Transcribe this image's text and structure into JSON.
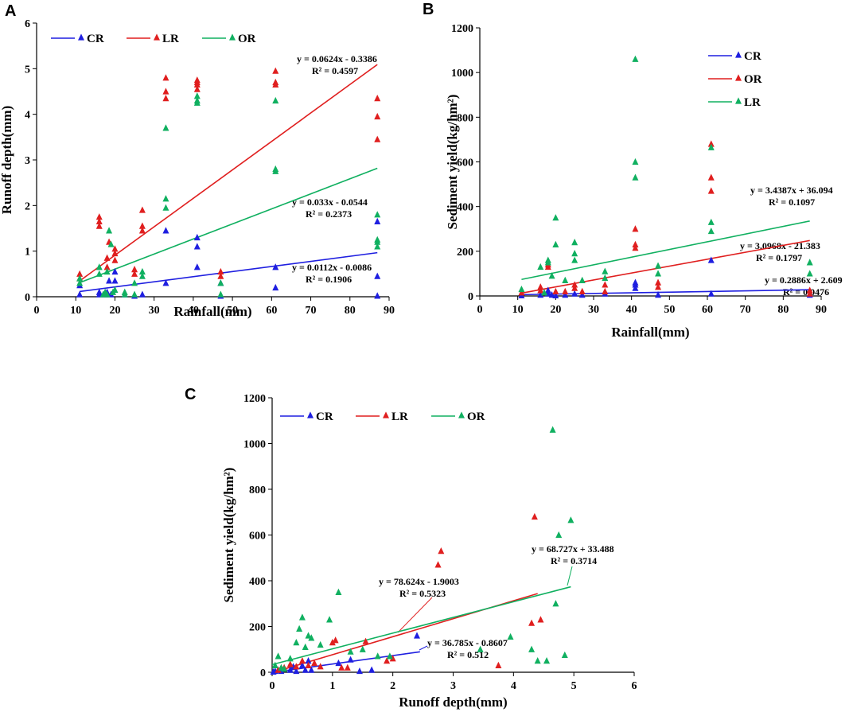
{
  "chart_data": [
    {
      "panel": "A",
      "type": "scatter",
      "xlabel": "Rainfall(mm)",
      "ylabel": "Runoff depth(mm)",
      "xlim": [
        0,
        90
      ],
      "ylim": [
        0,
        6
      ],
      "xticks": [
        0,
        10,
        20,
        30,
        40,
        50,
        60,
        70,
        80,
        90
      ],
      "yticks": [
        0,
        1,
        2,
        3,
        4,
        5,
        6
      ],
      "legend": [
        "CR",
        "LR",
        "OR"
      ],
      "legend_position": "top-left-horizontal",
      "series": [
        {
          "name": "CR",
          "color": "#1f1fe0",
          "x": [
            11,
            11,
            16,
            16,
            17.5,
            18,
            18.5,
            19,
            20,
            20,
            22.5,
            25,
            27,
            33,
            33,
            41,
            41,
            41,
            47,
            47,
            61,
            61,
            87,
            87,
            87
          ],
          "y": [
            0.05,
            0.25,
            0.05,
            0.1,
            0.05,
            0.1,
            0.35,
            0.05,
            0.55,
            0.35,
            0.05,
            0.02,
            0.05,
            0.3,
            1.45,
            1.3,
            1.1,
            0.65,
            0.02,
            0.3,
            0.2,
            0.65,
            0.02,
            0.45,
            1.65
          ],
          "fit": {
            "slope": 0.0112,
            "intercept": -0.0086,
            "x_range": [
              11,
              87
            ]
          }
        },
        {
          "name": "LR",
          "color": "#e01f1f",
          "x": [
            11,
            11,
            16,
            16,
            16,
            18,
            18,
            18.5,
            20,
            20,
            20,
            25,
            25,
            27,
            27,
            27,
            33,
            33,
            33,
            41,
            41,
            41,
            41,
            47,
            47,
            61,
            61,
            61,
            87,
            87,
            87
          ],
          "y": [
            0.4,
            0.5,
            1.55,
            1.65,
            1.75,
            0.65,
            0.85,
            1.2,
            0.8,
            0.95,
            1.05,
            0.5,
            0.6,
            1.45,
            1.55,
            1.9,
            4.35,
            4.5,
            4.8,
            4.55,
            4.65,
            4.7,
            4.75,
            0.45,
            0.55,
            4.65,
            4.7,
            4.95,
            3.45,
            3.95,
            4.35
          ],
          "fit": {
            "slope": 0.0624,
            "intercept": -0.3386,
            "x_range": [
              11,
              87
            ]
          }
        },
        {
          "name": "OR",
          "color": "#10b060",
          "x": [
            11,
            11,
            16,
            16,
            17,
            17.5,
            18,
            18,
            18.5,
            19,
            19.5,
            20,
            22.5,
            22.5,
            25,
            25,
            27,
            27,
            33,
            33,
            33,
            41,
            41,
            41,
            47,
            47,
            61,
            61,
            61,
            87,
            87,
            87,
            87
          ],
          "y": [
            0.3,
            0.4,
            0.5,
            0.65,
            0.05,
            0.1,
            0.05,
            0.55,
            1.45,
            1.15,
            0.1,
            0.15,
            0.05,
            0.1,
            0.05,
            0.3,
            0.55,
            0.45,
            1.95,
            2.15,
            3.7,
            4.25,
            4.3,
            4.4,
            0.05,
            0.3,
            2.75,
            2.8,
            4.3,
            1.1,
            1.2,
            1.25,
            1.8
          ],
          "fit": {
            "slope": 0.033,
            "intercept": -0.0544,
            "x_range": [
              11,
              87
            ]
          }
        }
      ],
      "annotations": [
        {
          "series": "LR",
          "eq": "y = 0.0624x - 0.3386",
          "r2": "R² = 0.4597"
        },
        {
          "series": "OR",
          "eq": "y = 0.033x - 0.0544",
          "r2": "R² = 0.2373"
        },
        {
          "series": "CR",
          "eq": "y = 0.0112x - 0.0086",
          "r2": "R² = 0.1906"
        }
      ]
    },
    {
      "panel": "B",
      "type": "scatter",
      "xlabel": "Rainfall(mm)",
      "ylabel": "Sediment yield(kg/hm²)",
      "xlim": [
        0,
        90
      ],
      "ylim": [
        0,
        1200
      ],
      "xticks": [
        0,
        10,
        20,
        30,
        40,
        50,
        60,
        70,
        80,
        90
      ],
      "yticks": [
        0,
        200,
        400,
        600,
        800,
        1000,
        1200
      ],
      "legend": [
        "CR",
        "OR",
        "LR"
      ],
      "legend_position": "top-right-vertical",
      "series": [
        {
          "name": "CR",
          "color": "#1f1fe0",
          "x": [
            11,
            16,
            18,
            18,
            19,
            20,
            22.5,
            25,
            27,
            33,
            41,
            41,
            41,
            47,
            61,
            61,
            87,
            87
          ],
          "y": [
            2,
            5,
            10,
            25,
            5,
            2,
            5,
            10,
            5,
            10,
            35,
            50,
            60,
            5,
            10,
            160,
            5,
            10
          ],
          "fit": {
            "slope": 0.2886,
            "intercept": 2.609,
            "x_range": [
              11,
              87
            ]
          }
        },
        {
          "name": "OR",
          "color": "#e01f1f",
          "x": [
            11,
            16,
            16,
            18,
            18,
            20,
            22.5,
            25,
            25,
            27,
            33,
            33,
            41,
            41,
            41,
            47,
            47,
            61,
            61,
            61,
            87,
            87
          ],
          "y": [
            15,
            25,
            40,
            130,
            140,
            20,
            20,
            35,
            50,
            20,
            20,
            50,
            215,
            230,
            300,
            40,
            60,
            470,
            530,
            680,
            10,
            25
          ],
          "fit": {
            "slope": 3.0968,
            "intercept": -21.383,
            "x_range": [
              11,
              87
            ]
          }
        },
        {
          "name": "LR",
          "color": "#10b060",
          "x": [
            11,
            16,
            17,
            18,
            18,
            19,
            20,
            20,
            22.5,
            25,
            25,
            25,
            27,
            33,
            33,
            41,
            41,
            41,
            47,
            47,
            61,
            61,
            61,
            87,
            87
          ],
          "y": [
            30,
            130,
            15,
            150,
            160,
            90,
            230,
            350,
            70,
            160,
            190,
            240,
            70,
            80,
            110,
            530,
            600,
            1060,
            100,
            135,
            290,
            330,
            665,
            100,
            150
          ],
          "fit": {
            "slope": 3.4387,
            "intercept": 36.094,
            "x_range": [
              11,
              87
            ]
          }
        }
      ],
      "annotations": [
        {
          "series": "LR",
          "eq": "y = 3.4387x + 36.094",
          "r2": "R² = 0.1097"
        },
        {
          "series": "OR",
          "eq": "y = 3.0968x - 21.383",
          "r2": "R² = 0.1797"
        },
        {
          "series": "CR",
          "eq": "y = 0.2886x + 2.609",
          "r2": "R² = 0.0476"
        }
      ]
    },
    {
      "panel": "C",
      "type": "scatter",
      "xlabel": "Runoff depth(mm)",
      "ylabel": "Sediment yield(kg/hm²)",
      "xlim": [
        0,
        6
      ],
      "ylim": [
        0,
        1200
      ],
      "xticks": [
        0,
        1,
        2,
        3,
        4,
        5,
        6
      ],
      "yticks": [
        0,
        200,
        400,
        600,
        800,
        1000,
        1200
      ],
      "legend": [
        "CR",
        "LR",
        "OR"
      ],
      "legend_position": "top-left-horizontal",
      "series": [
        {
          "name": "CR",
          "color": "#1f1fe0",
          "x": [
            0.02,
            0.05,
            0.1,
            0.15,
            0.2,
            0.3,
            0.35,
            0.4,
            0.5,
            0.55,
            0.6,
            0.65,
            1.1,
            1.3,
            1.45,
            1.65,
            2.4
          ],
          "y": [
            2,
            5,
            10,
            5,
            15,
            10,
            25,
            5,
            30,
            10,
            50,
            10,
            40,
            55,
            5,
            10,
            160
          ],
          "fit": {
            "slope": 36.785,
            "intercept": -0.8607,
            "x_range": [
              0,
              2.45
            ]
          }
        },
        {
          "name": "LR",
          "color": "#e01f1f",
          "x": [
            0.1,
            0.2,
            0.3,
            0.4,
            0.5,
            0.6,
            0.7,
            0.8,
            1.0,
            1.05,
            1.15,
            1.25,
            1.55,
            1.9,
            2.0,
            2.75,
            2.8,
            3.75,
            4.3,
            4.35,
            4.45
          ],
          "y": [
            10,
            20,
            35,
            25,
            50,
            30,
            40,
            25,
            130,
            140,
            20,
            20,
            135,
            50,
            60,
            470,
            530,
            30,
            215,
            680,
            230
          ],
          "fit": {
            "slope": 78.624,
            "intercept": -1.9003,
            "x_range": [
              0,
              4.4
            ]
          }
        },
        {
          "name": "OR",
          "color": "#10b060",
          "x": [
            0.05,
            0.1,
            0.15,
            0.2,
            0.3,
            0.4,
            0.45,
            0.5,
            0.55,
            0.6,
            0.65,
            0.8,
            0.95,
            1.1,
            1.3,
            1.5,
            1.75,
            1.95,
            3.45,
            3.95,
            4.3,
            4.4,
            4.55,
            4.65,
            4.7,
            4.75,
            4.85,
            4.95
          ],
          "y": [
            30,
            70,
            20,
            15,
            60,
            130,
            190,
            240,
            110,
            160,
            150,
            120,
            230,
            350,
            90,
            100,
            70,
            70,
            100,
            155,
            100,
            50,
            50,
            1060,
            300,
            600,
            75,
            665
          ],
          "fit": {
            "slope": 68.727,
            "intercept": 33.488,
            "x_range": [
              0,
              4.95
            ]
          }
        }
      ],
      "annotations": [
        {
          "series": "OR",
          "eq": "y = 68.727x + 33.488",
          "r2": "R² = 0.3714"
        },
        {
          "series": "LR",
          "eq": "y = 78.624x - 1.9003",
          "r2": "R² = 0.5323"
        },
        {
          "series": "CR",
          "eq": "y = 36.785x - 0.8607",
          "r2": "R² = 0.512"
        }
      ]
    }
  ]
}
